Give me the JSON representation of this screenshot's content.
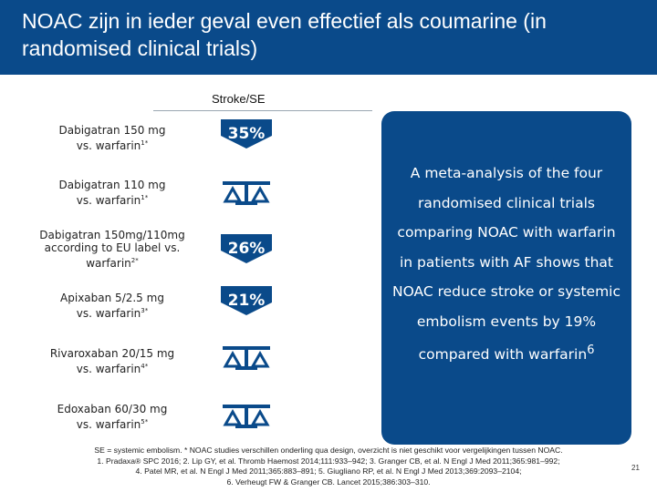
{
  "header": {
    "title": "NOAC zijn in ieder geval even effectief als coumarine (in randomised clinical trials)"
  },
  "column_header": "Stroke/SE",
  "rows": [
    {
      "drug": "Dabigatran 150 mg",
      "comparison": "vs. warfarin",
      "ref": "1*",
      "result_type": "arrow",
      "reduction": "35%"
    },
    {
      "drug": "Dabigatran 110 mg",
      "comparison": "vs. warfarin",
      "ref": "1*",
      "result_type": "scale",
      "icon": "balance-scale-icon"
    },
    {
      "drug": "Dabigatran 150mg/110mg",
      "drug_line2": "according to EU label vs.",
      "comparison": "warfarin",
      "ref": "2*",
      "result_type": "arrow",
      "reduction": "26%"
    },
    {
      "drug": "Apixaban 5/2.5 mg",
      "comparison": "vs. warfarin",
      "ref": "3*",
      "result_type": "arrow",
      "reduction": "21%"
    },
    {
      "drug": "Rivaroxaban 20/15 mg",
      "comparison": "vs. warfarin",
      "ref": "4*",
      "result_type": "scale",
      "icon": "balance-scale-icon"
    },
    {
      "drug": "Edoxaban 60/30 mg",
      "comparison": "vs. warfarin",
      "ref": "5*",
      "result_type": "scale",
      "icon": "balance-scale-icon"
    }
  ],
  "panel": {
    "text": "A meta-analysis of the four randomised clinical trials comparing NOAC with warfarin in patients with AF shows that NOAC reduce stroke or systemic embolism events by 19% compared with warfarin",
    "ref": "6"
  },
  "footnote": {
    "line1": "SE = systemic embolism. * NOAC studies verschillen onderling qua design, overzicht is niet geschikt voor vergelijkingen tussen NOAC.",
    "line2": "1. Pradaxa® SPC 2016; 2. Lip GY, et al. Thromb Haemost 2014;111:933–942; 3. Granger CB, et al. N Engl J Med 2011;365:981–992;",
    "line3": "4. Patel MR, et al. N Engl J Med 2011;365:883–891; 5. Giugliano RP, et al. N Engl J Med 2013;369:2093–2104;",
    "line4": "6. Verheugt FW & Granger CB. Lancet 2015;386:303–310."
  },
  "page_number": "21",
  "colors": {
    "brand_blue": "#0a4a8a",
    "white": "#ffffff"
  }
}
